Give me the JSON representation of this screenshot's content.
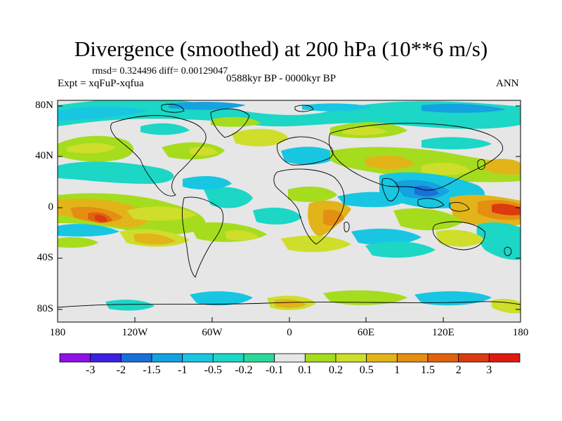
{
  "title": "Divergence (smoothed) at 200 hPa (10**6 m/s)",
  "stats": "rmsd= 0.324496 diff= 0.00129047",
  "experiment": "Expt = xqFuP-xqfua",
  "period": "0588kyr BP - 0000kyr BP",
  "season": "ANN",
  "lat_ticks": [
    "80N",
    "40N",
    "0",
    "40S",
    "80S"
  ],
  "lon_ticks": [
    "180",
    "120W",
    "60W",
    "0",
    "60E",
    "120E",
    "180"
  ],
  "colorbar": {
    "labels": [
      "-3",
      "-2",
      "-1.5",
      "-1",
      "-0.5",
      "-0.2",
      "-0.1",
      "0.1",
      "0.2",
      "0.5",
      "1",
      "1.5",
      "2",
      "3"
    ],
    "colors": [
      "#8f10e8",
      "#3c22e0",
      "#1a6fd8",
      "#14a2e0",
      "#18c6e2",
      "#1cd6c6",
      "#2ad89a",
      "#e6e6e6",
      "#a6dc1e",
      "#cede2a",
      "#e2b41a",
      "#e48e12",
      "#e0620e",
      "#dc3a10",
      "#de1a10"
    ]
  }
}
